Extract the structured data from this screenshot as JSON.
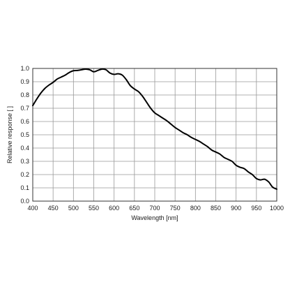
{
  "chart_data": {
    "type": "line",
    "title": "",
    "xlabel": "Wavelength [nm]",
    "ylabel": "Relative response [ ]",
    "xlim": [
      400,
      1000
    ],
    "ylim": [
      0.0,
      1.0
    ],
    "x_ticks": [
      "400",
      "450",
      "500",
      "550",
      "600",
      "650",
      "700",
      "750",
      "800",
      "850",
      "900",
      "950",
      "1000"
    ],
    "y_ticks": [
      "0.0",
      "0.1",
      "0.2",
      "0.3",
      "0.4",
      "0.5",
      "0.6",
      "0.7",
      "0.8",
      "0.9",
      "1.0"
    ],
    "grid": true,
    "legend": "none",
    "colors": {
      "line": "#000000",
      "grid": "#999999",
      "frame": "#333333"
    },
    "series": [
      {
        "x": [
          400,
          410,
          420,
          430,
          440,
          450,
          460,
          470,
          480,
          490,
          500,
          510,
          520,
          530,
          540,
          550,
          560,
          570,
          580,
          590,
          600,
          610,
          620,
          630,
          640,
          650,
          660,
          670,
          680,
          690,
          700,
          710,
          720,
          730,
          740,
          750,
          760,
          770,
          780,
          790,
          800,
          810,
          820,
          830,
          840,
          850,
          860,
          870,
          880,
          890,
          900,
          910,
          920,
          930,
          940,
          950,
          960,
          970,
          980,
          990,
          1000
        ],
        "y": [
          0.72,
          0.77,
          0.815,
          0.85,
          0.875,
          0.895,
          0.92,
          0.935,
          0.95,
          0.97,
          0.983,
          0.985,
          0.99,
          0.995,
          0.99,
          0.975,
          0.985,
          0.995,
          0.99,
          0.965,
          0.955,
          0.96,
          0.95,
          0.915,
          0.87,
          0.845,
          0.825,
          0.79,
          0.745,
          0.7,
          0.665,
          0.645,
          0.625,
          0.605,
          0.58,
          0.555,
          0.535,
          0.515,
          0.5,
          0.48,
          0.465,
          0.45,
          0.43,
          0.41,
          0.385,
          0.37,
          0.355,
          0.33,
          0.315,
          0.3,
          0.27,
          0.255,
          0.245,
          0.22,
          0.2,
          0.17,
          0.16,
          0.165,
          0.145,
          0.105,
          0.09
        ]
      }
    ]
  }
}
